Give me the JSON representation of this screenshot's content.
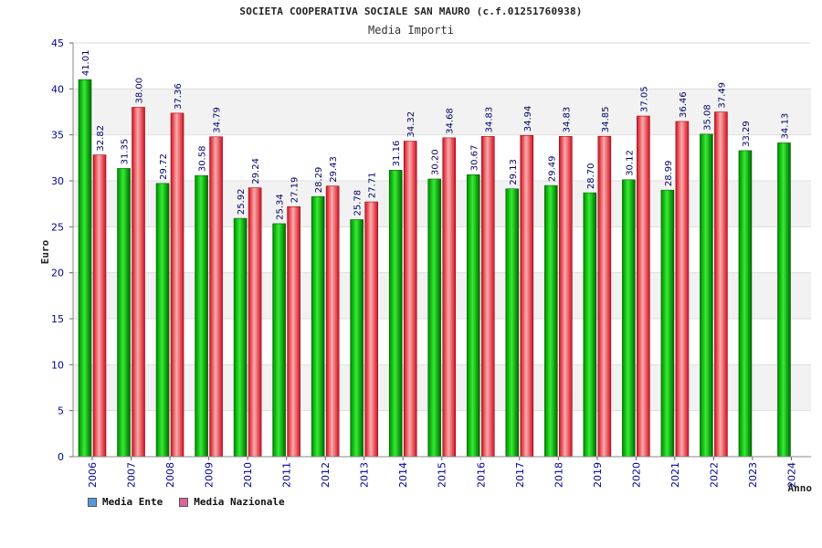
{
  "chart_data": {
    "type": "bar",
    "title": "SOCIETA COOPERATIVA SOCIALE SAN MAURO (c.f.01251760938)",
    "subtitle": "Media Importi",
    "xlabel": "Anno",
    "ylabel": "Euro",
    "ylim": [
      0,
      45
    ],
    "yticks": [
      0,
      5,
      10,
      15,
      20,
      25,
      30,
      35,
      40,
      45
    ],
    "grid": true,
    "legend_position": "bottom-left",
    "categories": [
      "2006",
      "2007",
      "2008",
      "2009",
      "2010",
      "2011",
      "2012",
      "2013",
      "2014",
      "2015",
      "2016",
      "2017",
      "2018",
      "2019",
      "2020",
      "2021",
      "2022",
      "2023",
      "2024"
    ],
    "series": [
      {
        "name": "Media Ente",
        "color": "#22bb22",
        "legend_color": "#5599dd",
        "values": [
          41.01,
          31.35,
          29.72,
          30.58,
          25.92,
          25.34,
          28.29,
          25.78,
          31.16,
          30.2,
          30.67,
          29.13,
          29.49,
          28.7,
          30.12,
          28.99,
          35.08,
          33.29,
          34.13
        ],
        "labels": [
          "41.01",
          "31.35",
          "29.72",
          "30.58",
          "25.92",
          "25.34",
          "28.29",
          "25.78",
          "31.16",
          "30.20",
          "30.67",
          "29.13",
          "29.49",
          "28.70",
          "30.12",
          "28.99",
          "35.08",
          "33.29",
          "34.13"
        ]
      },
      {
        "name": "Media Nazionale",
        "color": "#ee3344",
        "legend_color": "#dd6699",
        "values": [
          32.82,
          38.0,
          37.36,
          34.79,
          29.24,
          27.19,
          29.43,
          27.71,
          34.32,
          34.68,
          34.83,
          34.94,
          34.83,
          34.85,
          37.05,
          36.46,
          37.49,
          null,
          null
        ],
        "labels": [
          "32.82",
          "38.00",
          "37.36",
          "34.79",
          "29.24",
          "27.19",
          "29.43",
          "27.71",
          "34.32",
          "34.68",
          "34.83",
          "34.94",
          "34.83",
          "34.85",
          "37.05",
          "36.46",
          "37.49",
          null,
          null
        ]
      }
    ]
  }
}
